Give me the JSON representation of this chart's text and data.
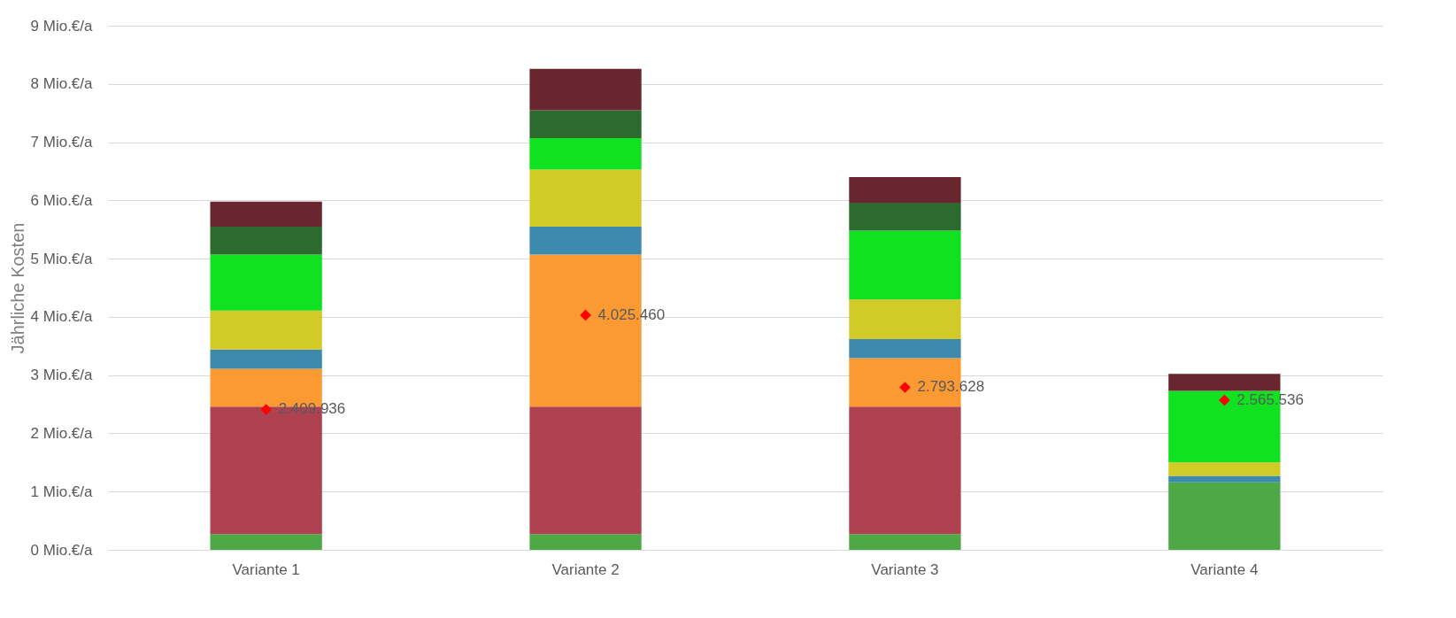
{
  "chart_data": {
    "type": "bar",
    "stacked": true,
    "ylabel": "Jährliche Kosten",
    "categories": [
      "Variante 1",
      "Variante 2",
      "Variante 3",
      "Variante 4"
    ],
    "ylim": [
      0,
      9
    ],
    "yticks": [
      {
        "value": 0,
        "label": "0 Mio.€/a"
      },
      {
        "value": 1,
        "label": "1 Mio.€/a"
      },
      {
        "value": 2,
        "label": "2 Mio.€/a"
      },
      {
        "value": 3,
        "label": "3 Mio.€/a"
      },
      {
        "value": 4,
        "label": "4 Mio.€/a"
      },
      {
        "value": 5,
        "label": "5 Mio.€/a"
      },
      {
        "value": 6,
        "label": "6 Mio.€/a"
      },
      {
        "value": 7,
        "label": "7 Mio.€/a"
      },
      {
        "value": 8,
        "label": "8 Mio.€/a"
      },
      {
        "value": 9,
        "label": "9 Mio.€/a"
      }
    ],
    "grid": "y",
    "legend": false,
    "series": [
      {
        "color": "#4ea846",
        "values": [
          0.27,
          0.27,
          0.27,
          1.16
        ]
      },
      {
        "color": "#ae4250",
        "values": [
          2.19,
          2.19,
          2.19,
          0
        ]
      },
      {
        "color": "#fb9a33",
        "values": [
          0.65,
          2.61,
          0.83,
          0
        ]
      },
      {
        "color": "#3e8aae",
        "values": [
          0.33,
          0.48,
          0.33,
          0.11
        ]
      },
      {
        "color": "#d2cb27",
        "values": [
          0.67,
          0.98,
          0.68,
          0.23
        ]
      },
      {
        "color": "#10e120",
        "values": [
          0.96,
          0.54,
          1.18,
          1.23
        ]
      },
      {
        "color": "#2d6a2d",
        "values": [
          0.48,
          0.48,
          0.48,
          0
        ]
      },
      {
        "color": "#6a262e",
        "values": [
          0.43,
          0.71,
          0.44,
          0.29
        ]
      },
      {
        "type": "scatter",
        "marker": "diamond",
        "color": "#ff0000",
        "x": [
          "Variante 1",
          "Variante 2",
          "Variante 3",
          "Variante 4"
        ],
        "values": [
          2.41,
          4.03,
          2.79,
          2.57
        ]
      }
    ],
    "annotations": [
      {
        "text": "2.409.936",
        "x": "Variante 1",
        "y": 2.41
      },
      {
        "text": "4.025.460",
        "x": "Variante 2",
        "y": 4.03
      },
      {
        "text": "2.793.628",
        "x": "Variante 3",
        "y": 2.79
      },
      {
        "text": "2.565.536",
        "x": "Variante 4",
        "y": 2.57
      }
    ]
  }
}
